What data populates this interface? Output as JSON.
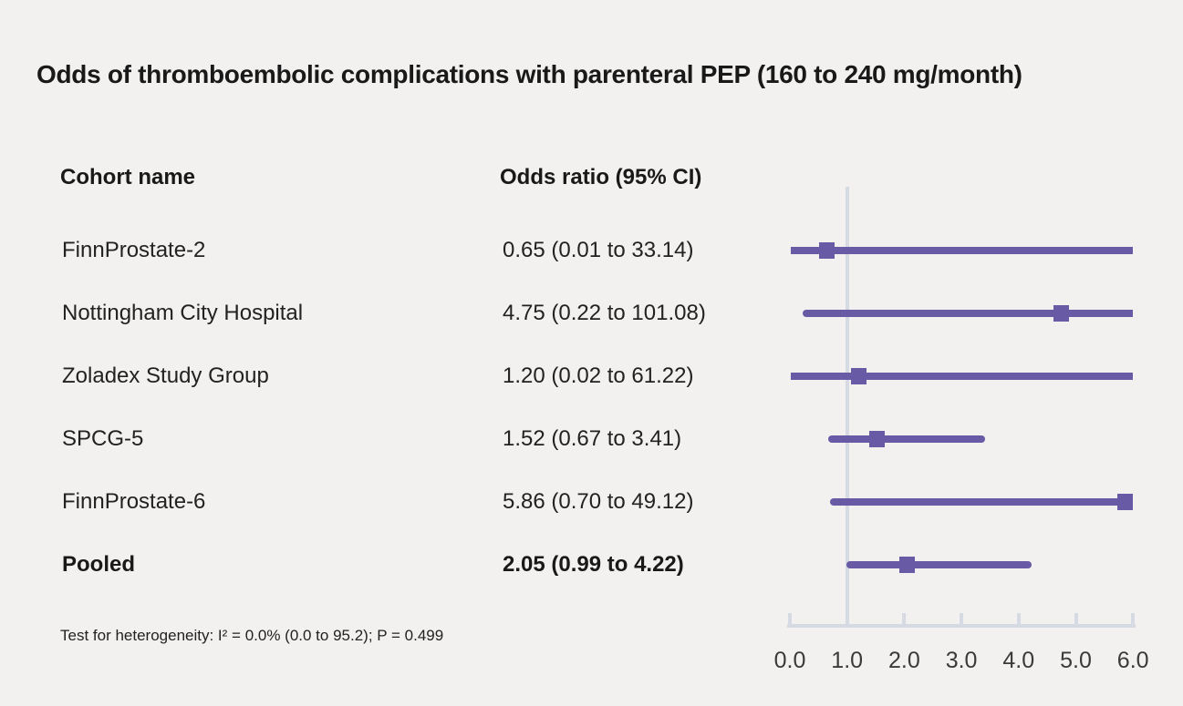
{
  "title": "Odds of thromboembolic complications with parenteral PEP (160 to 240 mg/month)",
  "columns": {
    "cohort": "Cohort name",
    "odds_ratio": "Odds ratio (95% CI)"
  },
  "footer": "Test for heterogeneity: I² = 0.0% (0.0 to 95.2); P = 0.499",
  "colors": {
    "background": "#f2f1ef",
    "bar": "#685aa5",
    "marker": "#685aa5",
    "axis": "#d6dae2",
    "text": "#191919"
  },
  "chart_data": {
    "type": "scatter",
    "variant": "forest-plot",
    "title": "Odds of thromboembolic complications with parenteral PEP (160 to 240 mg/month)",
    "xlabel": "Odds ratio",
    "xlim": [
      0.0,
      6.0
    ],
    "xticks": [
      "0.0",
      "1.0",
      "2.0",
      "3.0",
      "4.0",
      "5.0",
      "6.0"
    ],
    "reference_line_x": 1.0,
    "grid": false,
    "legend": "none",
    "rows": [
      {
        "label": "FinnProstate-2",
        "or_text": "0.65 (0.01 to 33.14)",
        "or": 0.65,
        "ci_low": 0.01,
        "ci_high": 33.14,
        "bold": false
      },
      {
        "label": "Nottingham City Hospital",
        "or_text": "4.75 (0.22 to 101.08)",
        "or": 4.75,
        "ci_low": 0.22,
        "ci_high": 101.08,
        "bold": false
      },
      {
        "label": "Zoladex Study Group",
        "or_text": "1.20 (0.02 to 61.22)",
        "or": 1.2,
        "ci_low": 0.02,
        "ci_high": 61.22,
        "bold": false
      },
      {
        "label": "SPCG-5",
        "or_text": "1.52 (0.67 to 3.41)",
        "or": 1.52,
        "ci_low": 0.67,
        "ci_high": 3.41,
        "bold": false
      },
      {
        "label": "FinnProstate-6",
        "or_text": "5.86 (0.70 to 49.12)",
        "or": 5.86,
        "ci_low": 0.7,
        "ci_high": 49.12,
        "bold": false
      },
      {
        "label": "Pooled",
        "or_text": "2.05 (0.99 to 4.22)",
        "or": 2.05,
        "ci_low": 0.99,
        "ci_high": 4.22,
        "bold": true
      }
    ]
  }
}
